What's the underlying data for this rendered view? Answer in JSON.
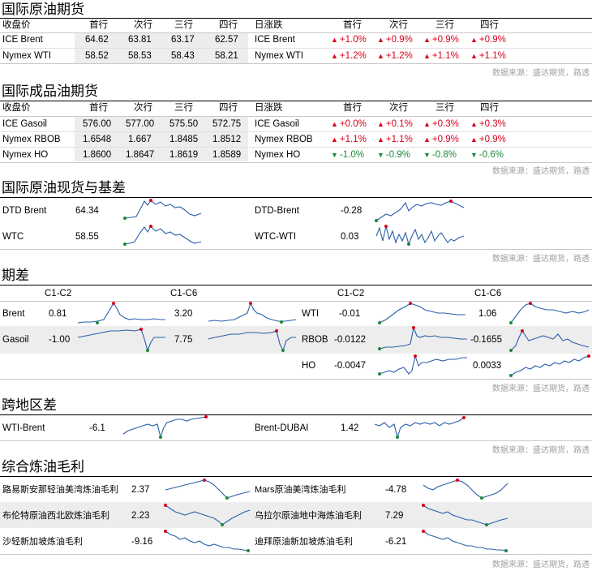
{
  "source_text": "数据来源：盛达期货，路透",
  "crude_futures": {
    "title": "国际原油期货",
    "headers": [
      "收盘价",
      "首行",
      "次行",
      "三行",
      "四行"
    ],
    "chg_headers": [
      "日涨跌",
      "首行",
      "次行",
      "三行",
      "四行"
    ],
    "rows": [
      {
        "name": "ICE Brent",
        "prices": [
          "64.62",
          "63.81",
          "63.17",
          "62.57"
        ],
        "chg_name": "ICE Brent",
        "chg": [
          {
            "dir": "up",
            "v": "+1.0%"
          },
          {
            "dir": "up",
            "v": "+0.9%"
          },
          {
            "dir": "up",
            "v": "+0.9%"
          },
          {
            "dir": "up",
            "v": "+0.9%"
          }
        ]
      },
      {
        "name": "Nymex WTI",
        "prices": [
          "58.52",
          "58.53",
          "58.43",
          "58.21"
        ],
        "chg_name": "Nymex WTI",
        "chg": [
          {
            "dir": "up",
            "v": "+1.2%"
          },
          {
            "dir": "up",
            "v": "+1.2%"
          },
          {
            "dir": "up",
            "v": "+1.1%"
          },
          {
            "dir": "up",
            "v": "+1.1%"
          }
        ]
      }
    ]
  },
  "product_futures": {
    "title": "国际成品油期货",
    "headers": [
      "收盘价",
      "首行",
      "次行",
      "三行",
      "四行"
    ],
    "chg_headers": [
      "日涨跌",
      "首行",
      "次行",
      "三行",
      "四行"
    ],
    "rows": [
      {
        "name": "ICE Gasoil",
        "prices": [
          "576.00",
          "577.00",
          "575.50",
          "572.75"
        ],
        "chg_name": "ICE Gasoil",
        "chg": [
          {
            "dir": "up",
            "v": "+0.0%"
          },
          {
            "dir": "up",
            "v": "+0.1%"
          },
          {
            "dir": "up",
            "v": "+0.3%"
          },
          {
            "dir": "up",
            "v": "+0.3%"
          }
        ]
      },
      {
        "name": "Nymex RBOB",
        "prices": [
          "1.6548",
          "1.667",
          "1.8485",
          "1.8512"
        ],
        "chg_name": "Nymex RBOB",
        "chg": [
          {
            "dir": "up",
            "v": "+1.1%"
          },
          {
            "dir": "up",
            "v": "+1.1%"
          },
          {
            "dir": "up",
            "v": "+0.9%"
          },
          {
            "dir": "up",
            "v": "+0.9%"
          }
        ]
      },
      {
        "name": "Nymex HO",
        "prices": [
          "1.8600",
          "1.8647",
          "1.8619",
          "1.8589"
        ],
        "chg_name": "Nymex HO",
        "chg": [
          {
            "dir": "down",
            "v": "-1.0%"
          },
          {
            "dir": "down",
            "v": "-0.9%"
          },
          {
            "dir": "down",
            "v": "-0.8%"
          },
          {
            "dir": "down",
            "v": "-0.6%"
          }
        ]
      }
    ]
  },
  "spot_basis": {
    "title": "国际原油现货与基差",
    "rows": [
      {
        "left_name": "DTD Brent",
        "left_value": "64.34",
        "right_name": "DTD-Brent",
        "right_value": "-0.28"
      },
      {
        "left_name": "WTC",
        "left_value": "58.55",
        "right_name": "WTC-WTI",
        "right_value": "0.03"
      }
    ]
  },
  "spreads": {
    "title": "期差",
    "col_headers": [
      "C1-C2",
      "C1-C6",
      "C1-C2",
      "C1-C6"
    ],
    "rows": [
      {
        "left_name": "Brent",
        "c1c2": "0.81",
        "c1c6": "3.20",
        "right_name": "WTI",
        "r_c1c2": "-0.01",
        "r_c1c6": "1.06"
      },
      {
        "left_name": "Gasoil",
        "c1c2": "-1.00",
        "c1c6": "7.75",
        "right_name": "RBOB",
        "r_c1c2": "-0.0122",
        "r_c1c6": "-0.1655"
      },
      {
        "left_name": "",
        "c1c2": "",
        "c1c6": "",
        "right_name": "HO",
        "r_c1c2": "-0.0047",
        "r_c1c6": "0.0033"
      }
    ]
  },
  "inter_region": {
    "title": "跨地区差",
    "left_name": "WTI-Brent",
    "left_value": "-6.1",
    "right_name": "Brent-DUBAI",
    "right_value": "1.42"
  },
  "margins": {
    "title": "综合炼油毛利",
    "rows": [
      {
        "left_name": "路易斯安那轻油美湾炼油毛利",
        "left_value": "2.37",
        "right_name": "Mars原油美湾炼油毛利",
        "right_value": "-4.78"
      },
      {
        "left_name": "布伦特原油西北欧炼油毛利",
        "left_value": "2.23",
        "right_name": "乌拉尔原油地中海炼油毛利",
        "right_value": "7.29"
      },
      {
        "left_name": "沙轻新加坡炼油毛利",
        "left_value": "-9.16",
        "right_name": "迪拜原油新加坡炼油毛利",
        "right_value": "-6.21"
      }
    ]
  }
}
